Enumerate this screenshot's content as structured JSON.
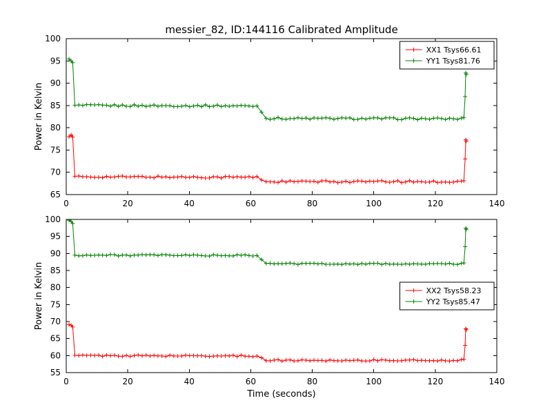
{
  "figure": {
    "title": "messier_82, ID:144116 Calibrated Amplitude",
    "background": "#ffffff",
    "text_color": "#000000"
  },
  "chart_data": [
    {
      "type": "line",
      "title": "messier_82, ID:144116 Calibrated Amplitude",
      "xlabel": "",
      "ylabel": "Power in Kelvin",
      "xlim": [
        0,
        140
      ],
      "ylim": [
        65,
        100
      ],
      "xticks": [
        0,
        20,
        40,
        60,
        80,
        100,
        120,
        140
      ],
      "yticks": [
        65,
        70,
        75,
        80,
        85,
        90,
        95,
        100
      ],
      "grid": false,
      "legend_position": "top-right",
      "marker": "+",
      "marker_step": 1.3,
      "noise_amp": 0.22,
      "series": [
        {
          "name": "XX1 Tsys66.61",
          "color": "#ff0000",
          "keypoints": [
            [
              0.9,
              78.2
            ],
            [
              1.6,
              78.4
            ],
            [
              2.1,
              77.9
            ],
            [
              2.8,
              69.0
            ],
            [
              62,
              68.9
            ],
            [
              65,
              67.9
            ],
            [
              128.5,
              67.9
            ],
            [
              129.3,
              68.1
            ],
            [
              129.7,
              73.0
            ],
            [
              129.9,
              77.3
            ],
            [
              130.1,
              77.0
            ]
          ]
        },
        {
          "name": "YY1 Tsys81.76",
          "color": "#008000",
          "keypoints": [
            [
              0.9,
              95.3
            ],
            [
              1.6,
              95.0
            ],
            [
              2.1,
              94.6
            ],
            [
              2.8,
              85.0
            ],
            [
              62,
              84.9
            ],
            [
              65,
              82.1
            ],
            [
              128.5,
              82.0
            ],
            [
              129.3,
              82.3
            ],
            [
              129.7,
              87.0
            ],
            [
              129.9,
              92.3
            ],
            [
              130.1,
              92.0
            ]
          ]
        }
      ]
    },
    {
      "type": "line",
      "title": "",
      "xlabel": "Time (seconds)",
      "ylabel": "Power in Kelvin",
      "xlim": [
        0,
        140
      ],
      "ylim": [
        55,
        100
      ],
      "xticks": [
        0,
        20,
        40,
        60,
        80,
        100,
        120,
        140
      ],
      "yticks": [
        55,
        60,
        65,
        70,
        75,
        80,
        85,
        90,
        95,
        100
      ],
      "grid": false,
      "legend_position": "center-right",
      "marker": "+",
      "marker_step": 1.3,
      "noise_amp": 0.22,
      "series": [
        {
          "name": "XX2 Tsys58.23",
          "color": "#ff0000",
          "keypoints": [
            [
              0.9,
              69.3
            ],
            [
              1.6,
              68.9
            ],
            [
              2.1,
              68.4
            ],
            [
              2.8,
              60.0
            ],
            [
              62,
              59.9
            ],
            [
              65,
              58.6
            ],
            [
              128.5,
              58.6
            ],
            [
              129.3,
              58.9
            ],
            [
              129.7,
              63.0
            ],
            [
              129.9,
              67.9
            ],
            [
              130.1,
              67.6
            ]
          ]
        },
        {
          "name": "YY2 Tsys85.47",
          "color": "#008000",
          "keypoints": [
            [
              0.9,
              99.7
            ],
            [
              1.6,
              99.4
            ],
            [
              2.1,
              98.8
            ],
            [
              2.8,
              89.5
            ],
            [
              62,
              89.4
            ],
            [
              65,
              87.0
            ],
            [
              128.5,
              86.9
            ],
            [
              129.3,
              87.2
            ],
            [
              129.7,
              92.0
            ],
            [
              129.9,
              97.4
            ],
            [
              130.1,
              97.1
            ]
          ]
        }
      ]
    }
  ]
}
